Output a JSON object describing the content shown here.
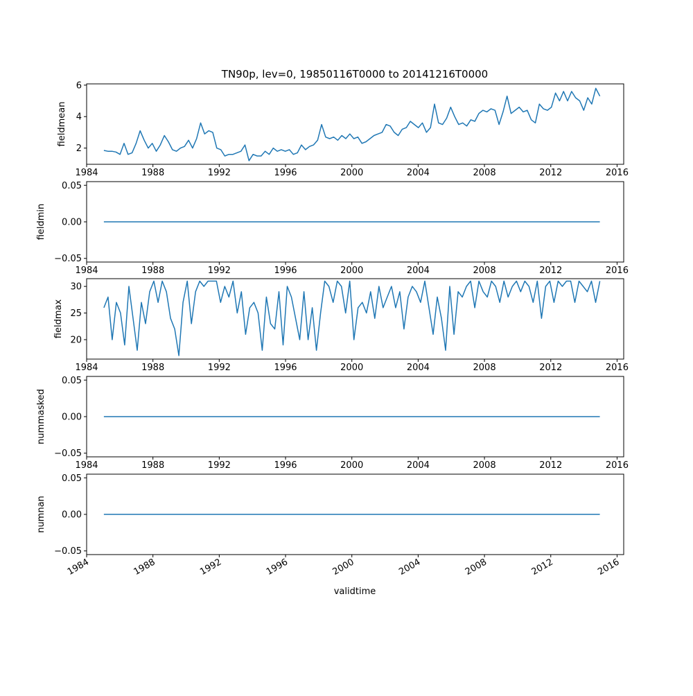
{
  "chart_data": {
    "type": "line",
    "title": "TN90p, lev=0, 19850116T0000 to 20141216T0000",
    "xlabel": "validtime",
    "xlim": [
      1984.0,
      2016.4
    ],
    "x_start": 1985.04,
    "x_end": 2014.96,
    "x_sampling": "quarterly approximation of monthly series",
    "xticks": [
      1984,
      1988,
      1992,
      1996,
      2000,
      2004,
      2008,
      2012,
      2016
    ],
    "xtick_labels": [
      "1984",
      "1988",
      "1992",
      "1996",
      "2000",
      "2004",
      "2008",
      "2012",
      "2016"
    ],
    "line_color": "#1f77b4",
    "subplots": [
      {
        "ylabel": "fieldmean",
        "ylim": [
          0.97,
          6.08
        ],
        "yticks": [
          2,
          4,
          6
        ],
        "ytick_labels": [
          "2",
          "4",
          "6"
        ],
        "values": [
          1.85,
          1.8,
          1.8,
          1.75,
          1.6,
          2.3,
          1.6,
          1.7,
          2.3,
          3.1,
          2.5,
          2.0,
          2.3,
          1.8,
          2.2,
          2.8,
          2.4,
          1.9,
          1.8,
          2.0,
          2.1,
          2.5,
          2.0,
          2.6,
          3.6,
          2.9,
          3.1,
          3.0,
          2.0,
          1.9,
          1.5,
          1.6,
          1.6,
          1.7,
          1.8,
          2.2,
          1.2,
          1.6,
          1.5,
          1.5,
          1.8,
          1.6,
          2.0,
          1.8,
          1.9,
          1.8,
          1.9,
          1.6,
          1.7,
          2.2,
          1.9,
          2.1,
          2.2,
          2.5,
          3.5,
          2.7,
          2.6,
          2.7,
          2.5,
          2.8,
          2.6,
          2.9,
          2.6,
          2.7,
          2.3,
          2.4,
          2.6,
          2.8,
          2.9,
          3.0,
          3.5,
          3.4,
          3.0,
          2.8,
          3.2,
          3.3,
          3.7,
          3.5,
          3.3,
          3.6,
          3.0,
          3.3,
          4.8,
          3.6,
          3.5,
          3.9,
          4.6,
          4.0,
          3.5,
          3.6,
          3.4,
          3.8,
          3.7,
          4.2,
          4.4,
          4.3,
          4.5,
          4.4,
          3.5,
          4.3,
          5.3,
          4.2,
          4.4,
          4.6,
          4.3,
          4.4,
          3.8,
          3.6,
          4.8,
          4.5,
          4.4,
          4.6,
          5.5,
          5.0,
          5.6,
          5.0,
          5.6,
          5.2,
          5.0,
          4.4,
          5.2,
          4.8,
          5.8,
          5.3
        ]
      },
      {
        "ylabel": "fieldmin",
        "ylim": [
          -0.055,
          0.055
        ],
        "yticks": [
          -0.05,
          0.0,
          0.05
        ],
        "ytick_labels": [
          "−0.05",
          "0.00",
          "0.05"
        ],
        "constant_value": 0.0
      },
      {
        "ylabel": "fieldmax",
        "ylim": [
          16.35,
          31.45
        ],
        "yticks": [
          20,
          25,
          30
        ],
        "ytick_labels": [
          "20",
          "25",
          "30"
        ],
        "values": [
          26,
          28,
          20,
          27,
          25,
          19,
          30,
          24,
          18,
          27,
          23,
          29,
          31,
          27,
          31,
          29,
          24,
          22,
          17,
          27,
          31,
          23,
          29,
          31,
          30,
          31,
          31,
          31,
          27,
          30,
          28,
          31,
          25,
          29,
          21,
          26,
          27,
          25,
          18,
          28,
          23,
          22,
          29,
          19,
          30,
          28,
          24,
          20,
          29,
          20,
          26,
          18,
          25,
          31,
          30,
          27,
          31,
          30,
          25,
          31,
          20,
          26,
          27,
          25,
          29,
          24,
          30,
          26,
          28,
          30,
          26,
          29,
          22,
          28,
          30,
          29,
          27,
          31,
          26,
          21,
          28,
          24,
          18,
          30,
          21,
          29,
          28,
          30,
          31,
          26,
          31,
          29,
          28,
          31,
          30,
          27,
          31,
          28,
          30,
          31,
          29,
          31,
          30,
          27,
          31,
          24,
          30,
          31,
          27,
          31,
          30,
          31,
          31,
          27,
          31,
          30,
          29,
          31,
          27,
          31
        ]
      },
      {
        "ylabel": "nummasked",
        "ylim": [
          -0.055,
          0.055
        ],
        "yticks": [
          -0.05,
          0.0,
          0.05
        ],
        "ytick_labels": [
          "−0.05",
          "0.00",
          "0.05"
        ],
        "constant_value": 0.0
      },
      {
        "ylabel": "numnan",
        "ylim": [
          -0.055,
          0.055
        ],
        "yticks": [
          -0.05,
          0.0,
          0.05
        ],
        "ytick_labels": [
          "−0.05",
          "0.00",
          "0.05"
        ],
        "constant_value": 0.0
      }
    ]
  }
}
